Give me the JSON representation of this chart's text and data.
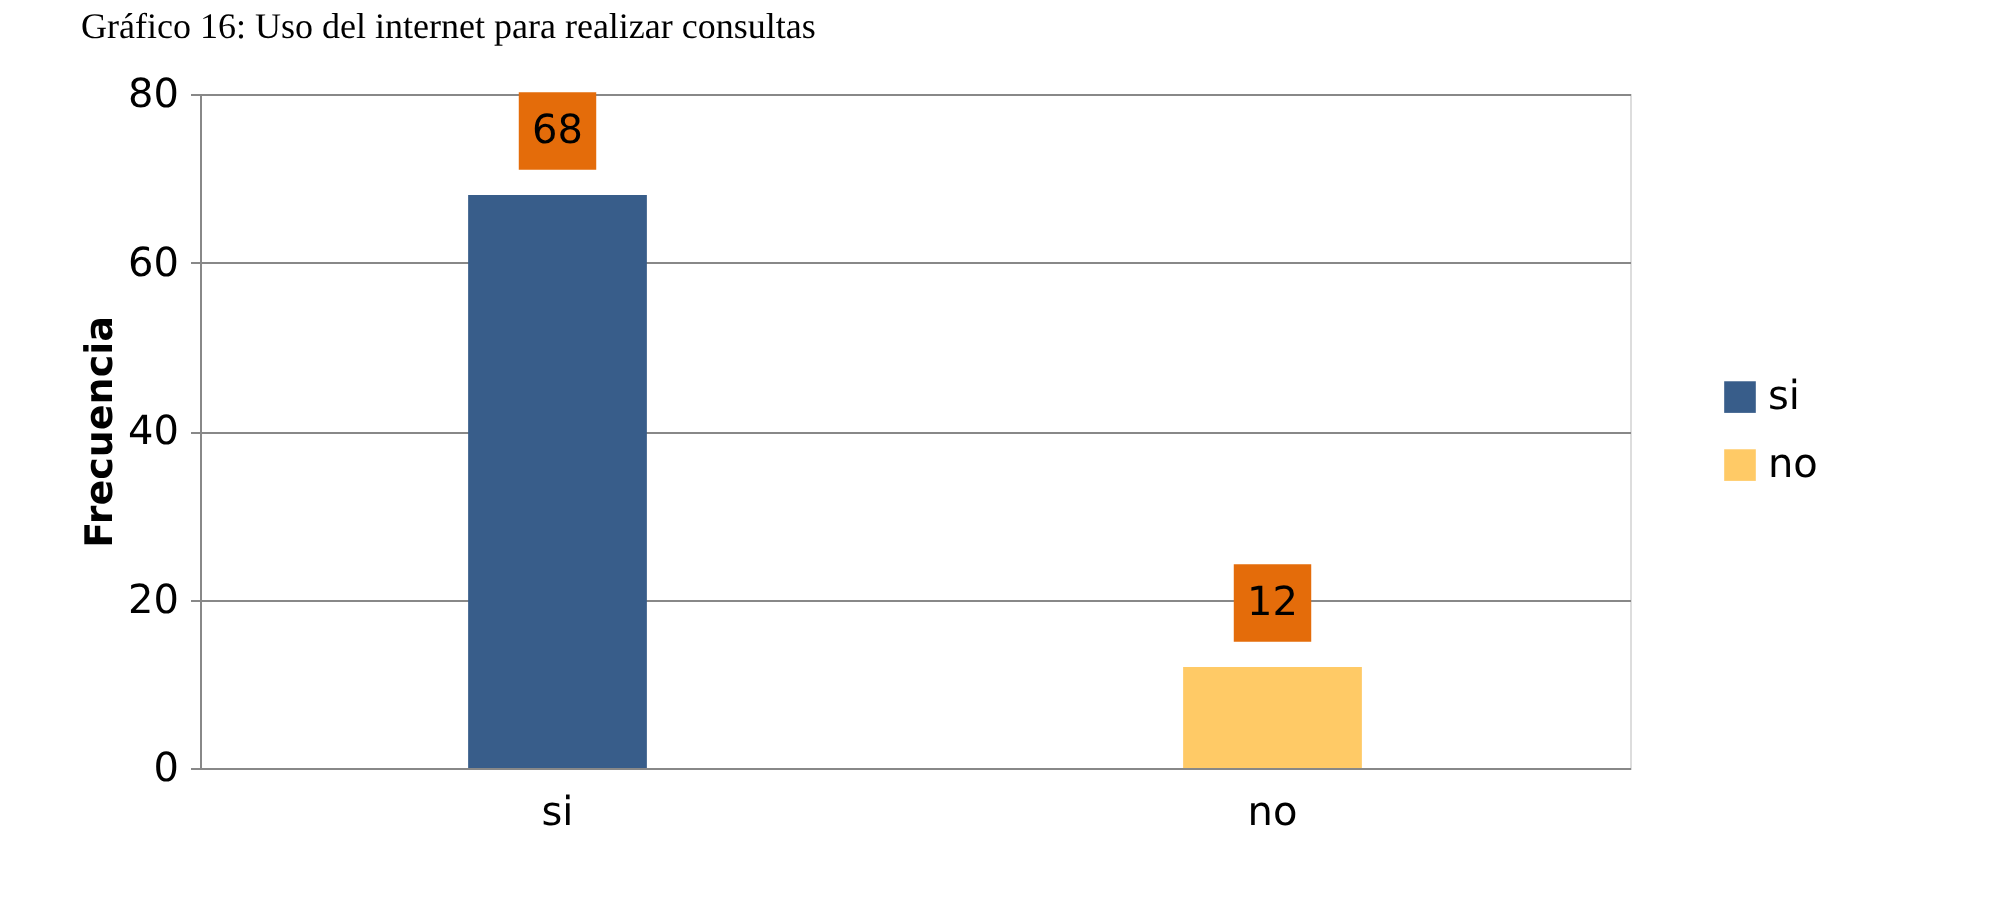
{
  "chart_data": {
    "type": "bar",
    "title": "Gráfico 16: Uso del internet para realizar consultas",
    "ylabel": "Frecuencia",
    "categories": [
      "si",
      "no"
    ],
    "series": [
      {
        "name": "si",
        "color": "#385d8a",
        "values": [
          68,
          null
        ]
      },
      {
        "name": "no",
        "color": "#ffca66",
        "values": [
          null,
          12
        ]
      }
    ],
    "ylim": [
      0,
      80
    ],
    "yticks": [
      0,
      20,
      40,
      60,
      80
    ],
    "grid": "y",
    "legend": "right",
    "data_labels": true
  }
}
